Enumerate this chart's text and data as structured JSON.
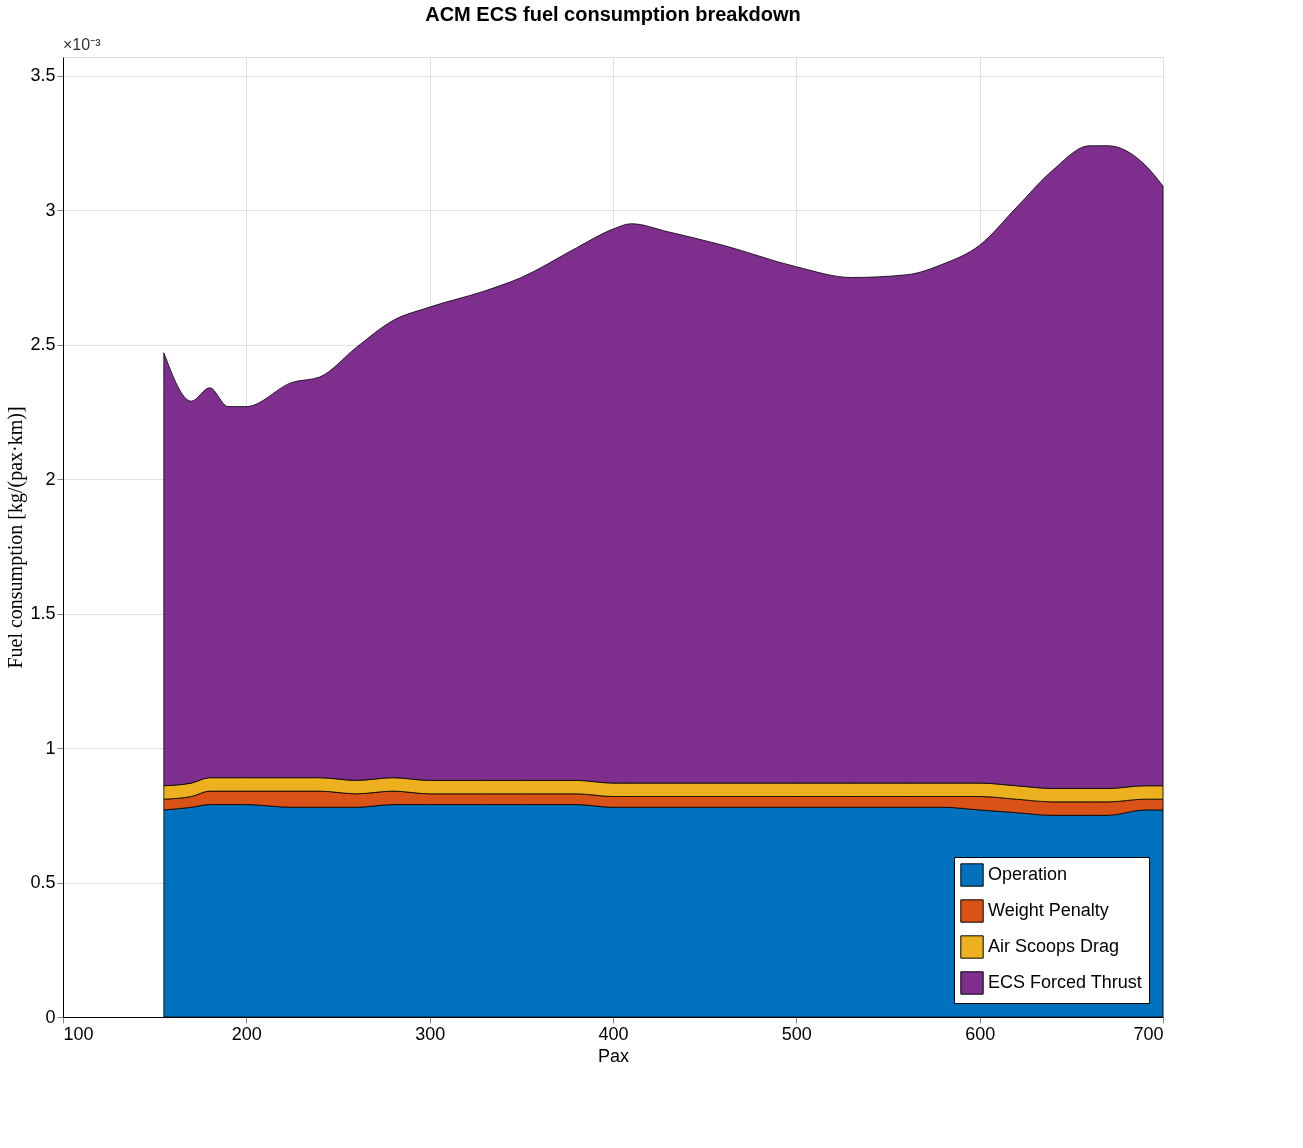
{
  "chart_data": {
    "type": "area",
    "title": "ACM ECS fuel consumption breakdown",
    "xlabel": "Pax",
    "ylabel": "Fuel consumption [kg/(pax·km)]",
    "annotations": [
      "×10⁻³"
    ],
    "stacked": true,
    "grid": true,
    "legend": "bottom right",
    "x": [
      155,
      170,
      180,
      190,
      200,
      225,
      240,
      260,
      280,
      300,
      330,
      350,
      380,
      400,
      410,
      430,
      460,
      500,
      530,
      560,
      580,
      600,
      620,
      640,
      660,
      670,
      690,
      700
    ],
    "xlim": [
      100,
      700
    ],
    "xticks": [
      100,
      200,
      300,
      400,
      500,
      600,
      700
    ],
    "ylim": [
      0,
      3.57
    ],
    "yticks": [
      0,
      0.5,
      1,
      1.5,
      2,
      2.5,
      3,
      3.5
    ],
    "series": [
      {
        "name": "Operation",
        "color": "#0072bd",
        "values": [
          0.77,
          0.78,
          0.79,
          0.79,
          0.79,
          0.78,
          0.78,
          0.78,
          0.79,
          0.79,
          0.79,
          0.79,
          0.79,
          0.78,
          0.78,
          0.78,
          0.78,
          0.78,
          0.78,
          0.78,
          0.78,
          0.77,
          0.76,
          0.75,
          0.75,
          0.75,
          0.77,
          0.77
        ]
      },
      {
        "name": "Weight Penalty",
        "color": "#d95319",
        "values": [
          0.04,
          0.04,
          0.05,
          0.05,
          0.05,
          0.06,
          0.06,
          0.05,
          0.05,
          0.04,
          0.04,
          0.04,
          0.04,
          0.04,
          0.04,
          0.04,
          0.04,
          0.04,
          0.04,
          0.04,
          0.04,
          0.05,
          0.05,
          0.05,
          0.05,
          0.05,
          0.04,
          0.04
        ]
      },
      {
        "name": "Air Scoops Drag",
        "color": "#edb120",
        "values": [
          0.05,
          0.05,
          0.05,
          0.05,
          0.05,
          0.05,
          0.05,
          0.05,
          0.05,
          0.05,
          0.05,
          0.05,
          0.05,
          0.05,
          0.05,
          0.05,
          0.05,
          0.05,
          0.05,
          0.05,
          0.05,
          0.05,
          0.05,
          0.05,
          0.05,
          0.05,
          0.05,
          0.05
        ]
      },
      {
        "name": "ECS Forced Thrust",
        "color": "#7e2f8e",
        "values": [
          1.61,
          1.42,
          1.45,
          1.38,
          1.38,
          1.47,
          1.49,
          1.61,
          1.7,
          1.76,
          1.82,
          1.87,
          1.98,
          2.06,
          2.08,
          2.05,
          2.0,
          1.92,
          1.88,
          1.89,
          1.93,
          2.0,
          2.15,
          2.3,
          2.39,
          2.39,
          2.31,
          2.23
        ]
      }
    ]
  }
}
